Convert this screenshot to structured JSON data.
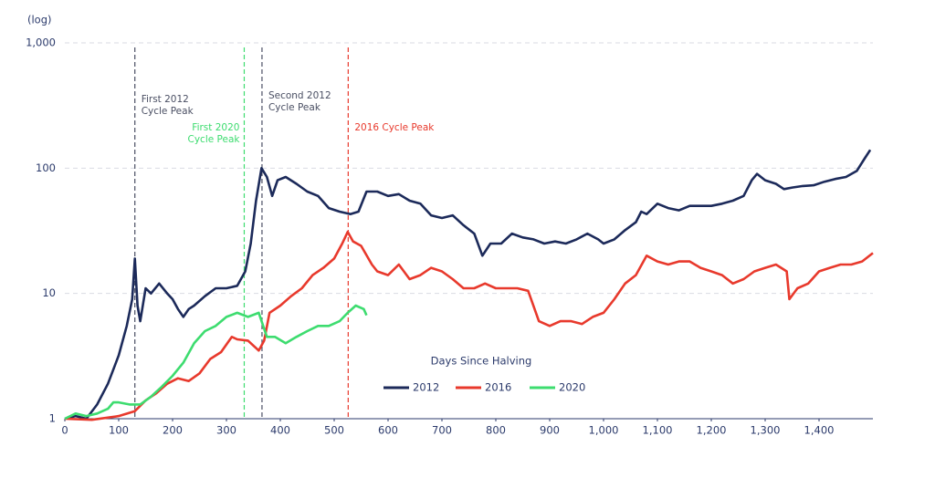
{
  "chart_data": {
    "type": "line",
    "y_label": "(log)",
    "x_label": "Days Since Halving",
    "y_log_scale": true,
    "grid": true,
    "legend_position": "bottom",
    "xlim": [
      0,
      1500
    ],
    "ylim": [
      1,
      1000
    ],
    "xticks": [
      0,
      100,
      200,
      300,
      400,
      500,
      600,
      700,
      800,
      900,
      {
        "value": 1000,
        "label": "1,000"
      },
      {
        "value": 1100,
        "label": "1,100"
      },
      {
        "value": 1200,
        "label": "1,200"
      },
      {
        "value": 1300,
        "label": "1,300"
      },
      {
        "value": 1400,
        "label": "1,400"
      }
    ],
    "yticks": [
      1,
      10,
      100,
      {
        "value": 1000,
        "label": "1,000"
      }
    ],
    "series": [
      {
        "name": "2012",
        "color": "#1c2a5a",
        "x": [
          0,
          20,
          40,
          60,
          80,
          100,
          115,
          125,
          130,
          135,
          140,
          150,
          160,
          175,
          190,
          200,
          210,
          220,
          230,
          240,
          260,
          280,
          300,
          320,
          335,
          345,
          355,
          365,
          375,
          385,
          395,
          410,
          430,
          450,
          470,
          490,
          510,
          530,
          545,
          560,
          580,
          600,
          620,
          640,
          660,
          680,
          700,
          720,
          740,
          760,
          775,
          790,
          810,
          830,
          850,
          870,
          890,
          910,
          930,
          950,
          970,
          990,
          1000,
          1020,
          1040,
          1060,
          1070,
          1080,
          1100,
          1120,
          1140,
          1160,
          1180,
          1200,
          1220,
          1240,
          1260,
          1275,
          1285,
          1300,
          1320,
          1335,
          1350,
          1370,
          1390,
          1410,
          1430,
          1450,
          1470,
          1485,
          1495
        ],
        "values": [
          1,
          1.05,
          1,
          1.3,
          1.9,
          3.2,
          5.5,
          9,
          19,
          8,
          6,
          11,
          10,
          12,
          10,
          9,
          7.5,
          6.5,
          7.5,
          8,
          9.5,
          11,
          11,
          11.5,
          15,
          25,
          55,
          100,
          85,
          60,
          80,
          85,
          75,
          65,
          60,
          48,
          45,
          43,
          45,
          65,
          65,
          60,
          62,
          55,
          52,
          42,
          40,
          42,
          35,
          30,
          20,
          25,
          25,
          30,
          28,
          27,
          25,
          26,
          25,
          27,
          30,
          27,
          25,
          27,
          32,
          37,
          45,
          43,
          52,
          48,
          46,
          50,
          50,
          50,
          52,
          55,
          60,
          80,
          90,
          80,
          75,
          68,
          70,
          72,
          73,
          78,
          82,
          85,
          95,
          120,
          140
        ]
      },
      {
        "name": "2016",
        "color": "#e8392c",
        "x": [
          0,
          50,
          100,
          130,
          150,
          170,
          190,
          210,
          230,
          250,
          270,
          290,
          310,
          320,
          340,
          360,
          370,
          380,
          400,
          420,
          440,
          460,
          480,
          500,
          515,
          525,
          535,
          550,
          570,
          580,
          600,
          620,
          640,
          660,
          680,
          700,
          720,
          740,
          760,
          780,
          800,
          820,
          840,
          860,
          880,
          900,
          920,
          940,
          960,
          980,
          1000,
          1020,
          1040,
          1060,
          1080,
          1100,
          1120,
          1140,
          1160,
          1180,
          1200,
          1220,
          1240,
          1260,
          1280,
          1300,
          1320,
          1340,
          1345,
          1360,
          1380,
          1400,
          1420,
          1440,
          1460,
          1480,
          1500
        ],
        "values": [
          1,
          0.98,
          1.05,
          1.15,
          1.4,
          1.6,
          1.9,
          2.1,
          2,
          2.3,
          3,
          3.4,
          4.5,
          4.3,
          4.2,
          3.5,
          4.2,
          7,
          8,
          9.5,
          11,
          14,
          16,
          19,
          25,
          31,
          26,
          24,
          17,
          15,
          14,
          17,
          13,
          14,
          16,
          15,
          13,
          11,
          11,
          12,
          11,
          11,
          11,
          10.5,
          6,
          5.5,
          6,
          6,
          5.7,
          6.5,
          7,
          9,
          12,
          14,
          20,
          18,
          17,
          18,
          18,
          16,
          15,
          14,
          12,
          13,
          15,
          16,
          17,
          15,
          9,
          11,
          12,
          15,
          16,
          17,
          17,
          18,
          21
        ]
      },
      {
        "name": "2020",
        "color": "#3ddc6f",
        "x": [
          0,
          20,
          40,
          60,
          80,
          90,
          100,
          120,
          140,
          160,
          180,
          200,
          220,
          240,
          260,
          280,
          300,
          320,
          340,
          360,
          375,
          390,
          410,
          430,
          450,
          470,
          490,
          510,
          525,
          540,
          555,
          560
        ],
        "values": [
          1,
          1.1,
          1.05,
          1.1,
          1.2,
          1.35,
          1.35,
          1.3,
          1.3,
          1.5,
          1.8,
          2.2,
          2.8,
          4,
          5,
          5.5,
          6.5,
          7,
          6.5,
          7,
          4.5,
          4.5,
          4,
          4.5,
          5,
          5.5,
          5.5,
          6,
          7,
          8,
          7.5,
          6.7
        ]
      }
    ],
    "annotations": [
      {
        "x": 130,
        "text": [
          "First 2012",
          "Cycle Peak"
        ],
        "color": "#4a4f63"
      },
      {
        "x": 333,
        "text": [
          "First 2020",
          "Cycle Peak"
        ],
        "color": "#3ddc6f"
      },
      {
        "x": 366,
        "text": [
          "Second 2012",
          "Cycle Peak"
        ],
        "color": "#4a4f63"
      },
      {
        "x": 526,
        "text": [
          "2016 Cycle Peak"
        ],
        "color": "#e8392c"
      }
    ]
  }
}
